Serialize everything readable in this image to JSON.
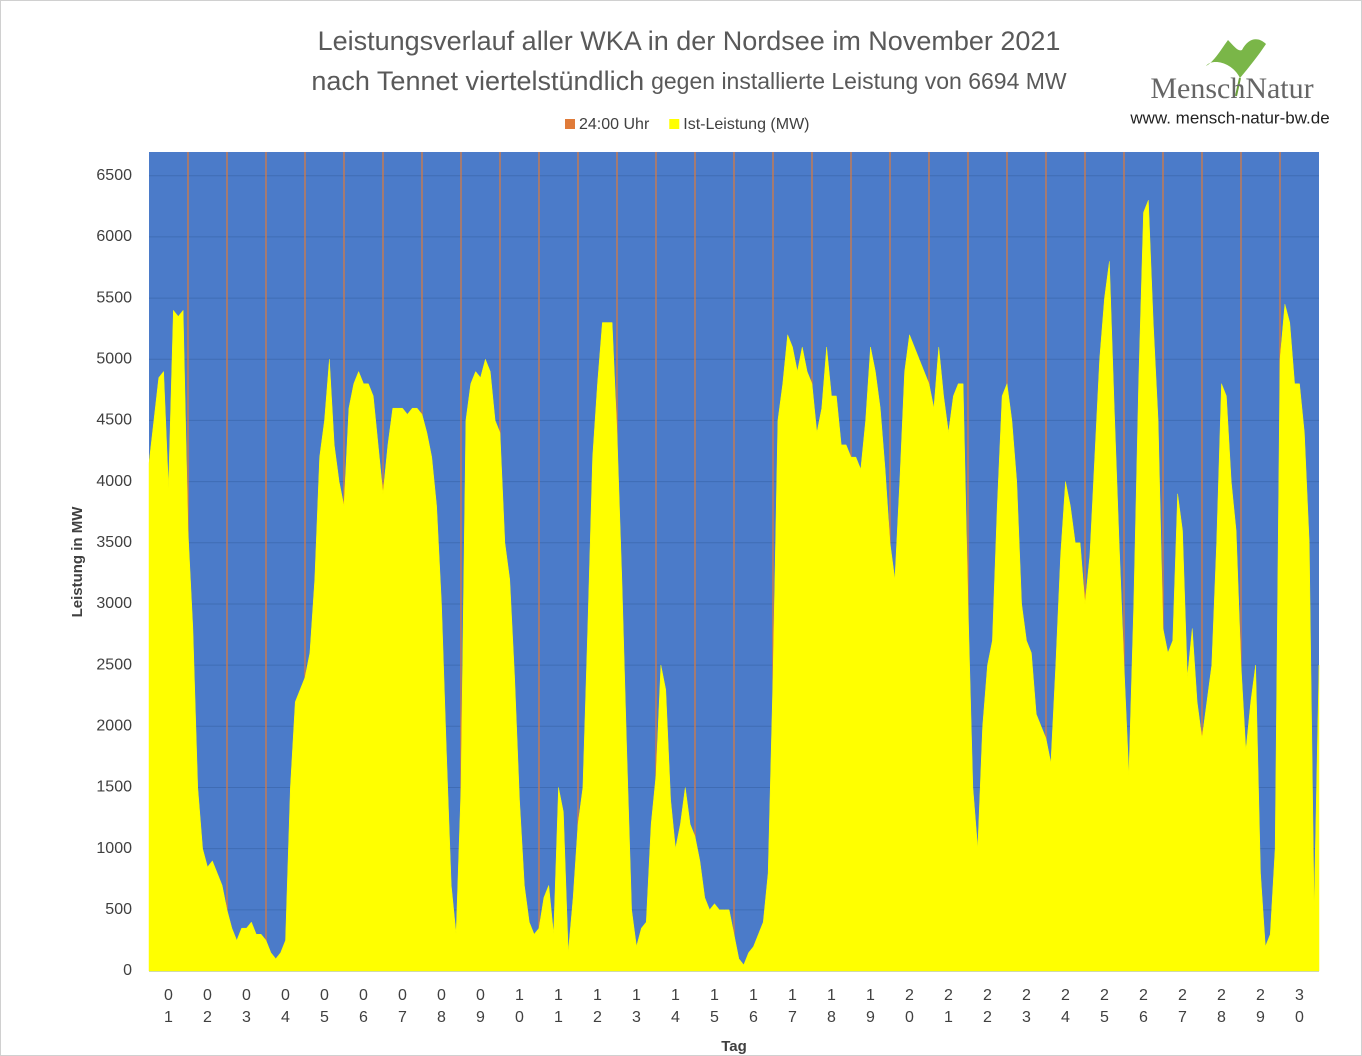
{
  "chart_data": {
    "type": "area",
    "title": "Leistungsverlauf aller WKA in der Nordsee im November 2021",
    "subtitle": "nach Tennet viertelstündlich",
    "subtitle_note": "gegen installierte Leistung von 6694 MW",
    "logo": {
      "name_left": "Mensch",
      "name_right": "Natur",
      "url": "www. mensch-natur-bw.de"
    },
    "xlabel": "Tag",
    "ylabel": "Leistung in MW",
    "xlim": [
      0,
      30
    ],
    "ylim": [
      0,
      6694
    ],
    "yticks": [
      0,
      500,
      1000,
      1500,
      2000,
      2500,
      3000,
      3500,
      4000,
      4500,
      5000,
      5500,
      6000,
      6500
    ],
    "xticks": [
      {
        "value": 0.5,
        "label": "01"
      },
      {
        "value": 1.5,
        "label": "02"
      },
      {
        "value": 2.5,
        "label": "03"
      },
      {
        "value": 3.5,
        "label": "04"
      },
      {
        "value": 4.5,
        "label": "05"
      },
      {
        "value": 5.5,
        "label": "06"
      },
      {
        "value": 6.5,
        "label": "07"
      },
      {
        "value": 7.5,
        "label": "08"
      },
      {
        "value": 8.5,
        "label": "09"
      },
      {
        "value": 9.5,
        "label": "10"
      },
      {
        "value": 10.5,
        "label": "11"
      },
      {
        "value": 11.5,
        "label": "12"
      },
      {
        "value": 12.5,
        "label": "13"
      },
      {
        "value": 13.5,
        "label": "14"
      },
      {
        "value": 14.5,
        "label": "15"
      },
      {
        "value": 15.5,
        "label": "16"
      },
      {
        "value": 16.5,
        "label": "17"
      },
      {
        "value": 17.5,
        "label": "18"
      },
      {
        "value": 18.5,
        "label": "19"
      },
      {
        "value": 19.5,
        "label": "20"
      },
      {
        "value": 20.5,
        "label": "21"
      },
      {
        "value": 21.5,
        "label": "22"
      },
      {
        "value": 22.5,
        "label": "23"
      },
      {
        "value": 23.5,
        "label": "24"
      },
      {
        "value": 24.5,
        "label": "25"
      },
      {
        "value": 25.5,
        "label": "26"
      },
      {
        "value": 26.5,
        "label": "27"
      },
      {
        "value": 27.5,
        "label": "28"
      },
      {
        "value": 28.5,
        "label": "29"
      },
      {
        "value": 29.5,
        "label": "30"
      }
    ],
    "grid": true,
    "plot_background": "#4b7bc9",
    "series": [
      {
        "name": "24:00 Uhr",
        "color": "#e07b39",
        "x": [
          1,
          2,
          3,
          4,
          5,
          6,
          7,
          8,
          9,
          10,
          11,
          12,
          13,
          14,
          15,
          16,
          17,
          18,
          19,
          20,
          21,
          22,
          23,
          24,
          25,
          26,
          27,
          28,
          29
        ],
        "values": [
          6694,
          6694,
          6694,
          6694,
          6694,
          6694,
          6694,
          6694,
          6694,
          6694,
          6694,
          6694,
          6694,
          6694,
          6694,
          6694,
          6694,
          6694,
          6694,
          6694,
          6694,
          6694,
          6694,
          6694,
          6694,
          6694,
          6694,
          6694,
          6694
        ]
      },
      {
        "name": "Ist-Leistung (MW)",
        "color": "#ffff00",
        "x": [
          0,
          0.125,
          0.25,
          0.375,
          0.5,
          0.625,
          0.75,
          0.875,
          1,
          1.125,
          1.25,
          1.375,
          1.5,
          1.625,
          1.75,
          1.875,
          2,
          2.125,
          2.25,
          2.375,
          2.5,
          2.625,
          2.75,
          2.875,
          3,
          3.125,
          3.25,
          3.375,
          3.5,
          3.625,
          3.75,
          3.875,
          4,
          4.125,
          4.25,
          4.375,
          4.5,
          4.625,
          4.75,
          4.875,
          5,
          5.125,
          5.25,
          5.375,
          5.5,
          5.625,
          5.75,
          5.875,
          6,
          6.125,
          6.25,
          6.375,
          6.5,
          6.625,
          6.75,
          6.875,
          7,
          7.125,
          7.25,
          7.375,
          7.5,
          7.625,
          7.75,
          7.875,
          8,
          8.125,
          8.25,
          8.375,
          8.5,
          8.625,
          8.75,
          8.875,
          9,
          9.125,
          9.25,
          9.375,
          9.5,
          9.625,
          9.75,
          9.875,
          10,
          10.125,
          10.25,
          10.375,
          10.5,
          10.625,
          10.75,
          10.875,
          11,
          11.125,
          11.25,
          11.375,
          11.5,
          11.625,
          11.75,
          11.875,
          12,
          12.125,
          12.25,
          12.375,
          12.5,
          12.625,
          12.75,
          12.875,
          13,
          13.125,
          13.25,
          13.375,
          13.5,
          13.625,
          13.75,
          13.875,
          14,
          14.125,
          14.25,
          14.375,
          14.5,
          14.625,
          14.75,
          14.875,
          15,
          15.125,
          15.25,
          15.375,
          15.5,
          15.625,
          15.75,
          15.875,
          16,
          16.125,
          16.25,
          16.375,
          16.5,
          16.625,
          16.75,
          16.875,
          17,
          17.125,
          17.25,
          17.375,
          17.5,
          17.625,
          17.75,
          17.875,
          18,
          18.125,
          18.25,
          18.375,
          18.5,
          18.625,
          18.75,
          18.875,
          19,
          19.125,
          19.25,
          19.375,
          19.5,
          19.625,
          19.75,
          19.875,
          20,
          20.125,
          20.25,
          20.375,
          20.5,
          20.625,
          20.75,
          20.875,
          21,
          21.125,
          21.25,
          21.375,
          21.5,
          21.625,
          21.75,
          21.875,
          22,
          22.125,
          22.25,
          22.375,
          22.5,
          22.625,
          22.75,
          22.875,
          23,
          23.125,
          23.25,
          23.375,
          23.5,
          23.625,
          23.75,
          23.875,
          24,
          24.125,
          24.25,
          24.375,
          24.5,
          24.625,
          24.75,
          24.875,
          25,
          25.125,
          25.25,
          25.375,
          25.5,
          25.625,
          25.75,
          25.875,
          26,
          26.125,
          26.25,
          26.375,
          26.5,
          26.625,
          26.75,
          26.875,
          27,
          27.125,
          27.25,
          27.375,
          27.5,
          27.625,
          27.75,
          27.875,
          28,
          28.125,
          28.25,
          28.375,
          28.5,
          28.625,
          28.75,
          28.875,
          29,
          29.125,
          29.25,
          29.375,
          29.5,
          29.625,
          29.75,
          29.875,
          30
        ],
        "values": [
          4150,
          4500,
          4850,
          4900,
          3950,
          5400,
          5350,
          5400,
          3600,
          2800,
          1500,
          1000,
          850,
          900,
          800,
          700,
          500,
          350,
          250,
          350,
          350,
          400,
          300,
          300,
          250,
          150,
          100,
          150,
          250,
          1500,
          2200,
          2300,
          2400,
          2600,
          3200,
          4200,
          4500,
          5000,
          4300,
          4000,
          3800,
          4600,
          4800,
          4900,
          4800,
          4800,
          4700,
          4300,
          3900,
          4300,
          4600,
          4600,
          4600,
          4550,
          4600,
          4600,
          4550,
          4400,
          4200,
          3800,
          3000,
          1800,
          700,
          300,
          1500,
          4500,
          4800,
          4900,
          4850,
          5000,
          4900,
          4500,
          4400,
          3500,
          3200,
          2400,
          1400,
          700,
          400,
          300,
          350,
          600,
          700,
          300,
          1500,
          1300,
          150,
          600,
          1200,
          1500,
          2800,
          4200,
          4800,
          5300,
          5300,
          5300,
          4400,
          3200,
          1800,
          500,
          200,
          350,
          400,
          1200,
          1600,
          2500,
          2300,
          1400,
          1000,
          1200,
          1500,
          1200,
          1100,
          900,
          600,
          500,
          550,
          500,
          500,
          500,
          300,
          100,
          50,
          150,
          200,
          300,
          400,
          800,
          2400,
          4500,
          4800,
          5200,
          5100,
          4900,
          5100,
          4900,
          4800,
          4400,
          4600,
          5100,
          4700,
          4700,
          4300,
          4300,
          4200,
          4200,
          4100,
          4500,
          5100,
          4900,
          4600,
          4100,
          3500,
          3200,
          4000,
          4900,
          5200,
          5100,
          5000,
          4900,
          4800,
          4600,
          5100,
          4700,
          4400,
          4700,
          4800,
          4800,
          3000,
          1500,
          1000,
          2000,
          2500,
          2700,
          3800,
          4700,
          4800,
          4500,
          4000,
          3000,
          2700,
          2600,
          2100,
          2000,
          1900,
          1700,
          2500,
          3400,
          4000,
          3800,
          3500,
          3500,
          3000,
          3400,
          4200,
          5000,
          5500,
          5800,
          4600,
          3500,
          2500,
          1600,
          3000,
          4800,
          6200,
          6300,
          5300,
          4500,
          2800,
          2600,
          2700,
          3900,
          3600,
          2400,
          2800,
          2200,
          1900,
          2200,
          2500,
          3500,
          4800,
          4700,
          4000,
          3600,
          2500,
          1800,
          2200,
          2500,
          800,
          200,
          300,
          1000,
          5000,
          5450,
          5300,
          4800,
          4800,
          4400,
          3500,
          500,
          2500
        ]
      }
    ]
  }
}
